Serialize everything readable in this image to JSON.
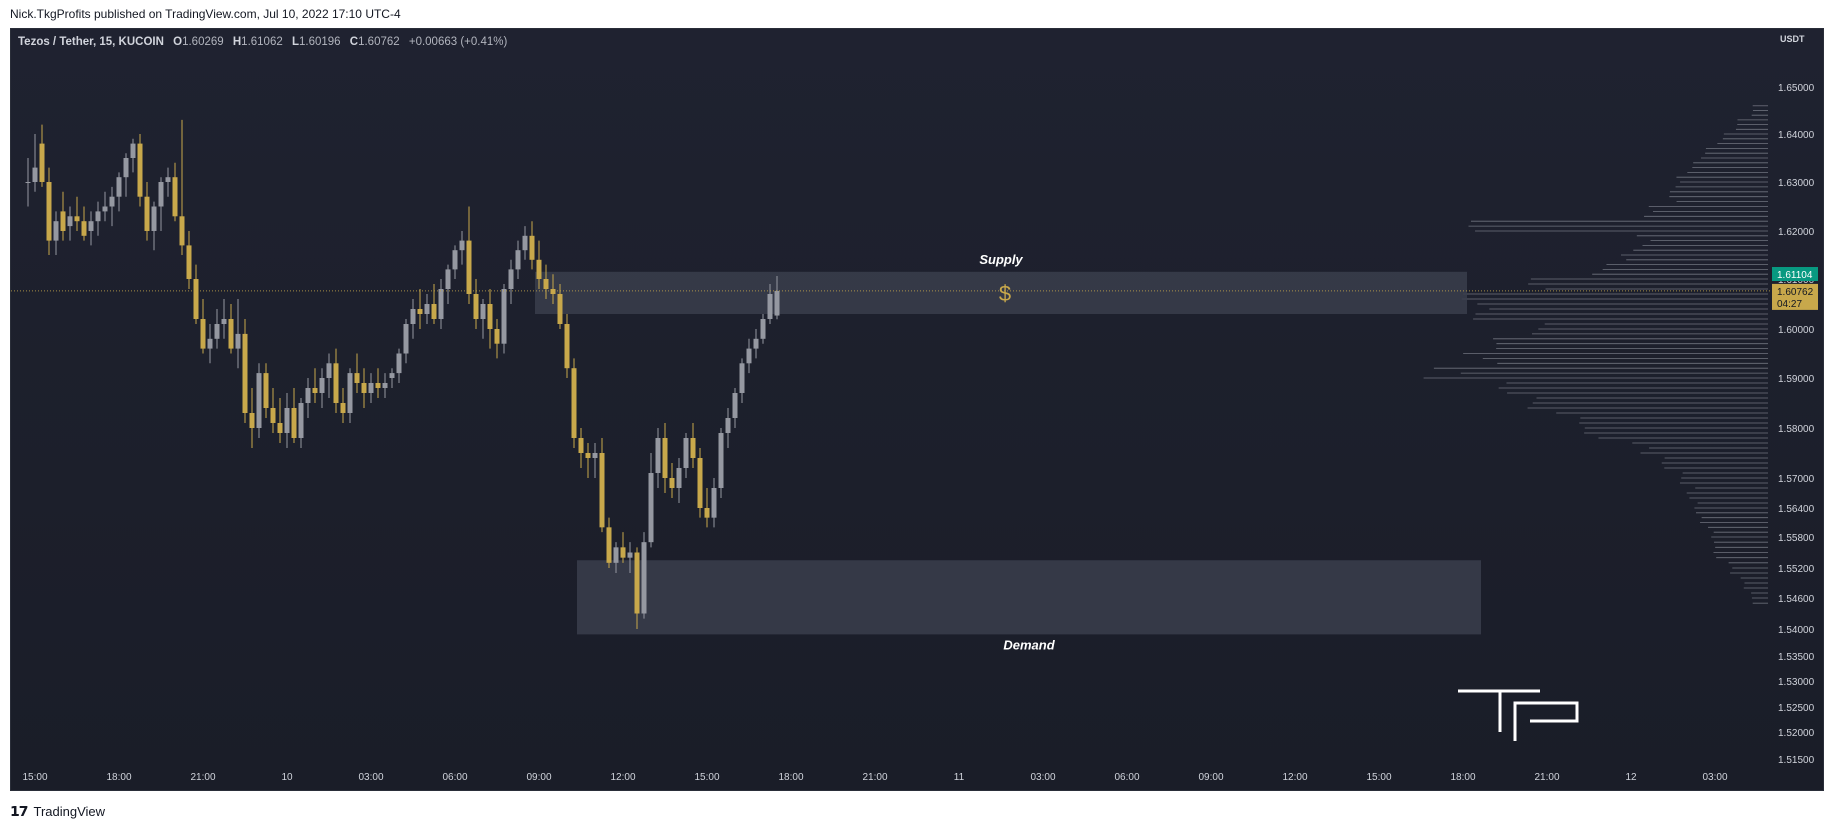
{
  "header": {
    "published": "Nick.TkgProfits published on TradingView.com, Jul 10, 2022 17:10 UTC-4"
  },
  "legend": {
    "symbol": "Tezos / Tether, 15, KUCOIN",
    "o_label": "O",
    "o_value": "1.60269",
    "h_label": "H",
    "h_value": "1.61062",
    "l_label": "L",
    "l_value": "1.60196",
    "c_label": "C",
    "c_value": "1.60762",
    "change": "+0.00663 (+0.41%)"
  },
  "footer": {
    "brand": "TradingView"
  },
  "colors": {
    "bull": "#c8a84b",
    "bear": "#9598a1",
    "zone": "#3a3e4c",
    "last_price_bg": "#089981",
    "close_bg": "#c8a84b",
    "dollar": "#c8a84b"
  },
  "chart_data": {
    "type": "candlestick",
    "symbol": "Tezos / Tether",
    "interval": "15",
    "exchange": "KUCOIN",
    "currency_label": "USDT",
    "ylim": [
      1.514,
      1.66
    ],
    "yticks": [
      "1.65000",
      "1.64000",
      "1.63000",
      "1.62000",
      "1.61000",
      "1.60000",
      "1.59000",
      "1.58000",
      "1.57000",
      "1.56400",
      "1.55800",
      "1.55200",
      "1.54600",
      "1.54000",
      "1.53500",
      "1.53000",
      "1.52500",
      "1.52000",
      "1.51500"
    ],
    "ytick_values": [
      1.65,
      1.64,
      1.63,
      1.62,
      1.61,
      1.6,
      1.59,
      1.58,
      1.57,
      1.564,
      1.558,
      1.552,
      1.546,
      1.54,
      1.535,
      1.53,
      1.525,
      1.52,
      1.515
    ],
    "xticks": [
      "15:00",
      "18:00",
      "21:00",
      "10",
      "03:00",
      "06:00",
      "09:00",
      "12:00",
      "15:00",
      "18:00",
      "21:00",
      "11",
      "03:00",
      "06:00",
      "09:00",
      "12:00",
      "15:00",
      "18:00",
      "21:00",
      "12",
      "03:00"
    ],
    "xtick_hours": [
      0,
      3,
      6,
      9,
      12,
      15,
      18,
      21,
      24,
      27,
      30,
      33,
      36,
      39,
      42,
      45,
      48,
      51,
      54,
      57,
      60
    ],
    "candle_start_hour": -0.25,
    "candles": [
      [
        1.63,
        1.635,
        1.625,
        1.63
      ],
      [
        1.63,
        1.64,
        1.628,
        1.633
      ],
      [
        1.638,
        1.642,
        1.629,
        1.63
      ],
      [
        1.63,
        1.633,
        1.615,
        1.618
      ],
      [
        1.618,
        1.624,
        1.615,
        1.622
      ],
      [
        1.624,
        1.628,
        1.618,
        1.62
      ],
      [
        1.621,
        1.625,
        1.618,
        1.623
      ],
      [
        1.623,
        1.627,
        1.62,
        1.622
      ],
      [
        1.622,
        1.625,
        1.618,
        1.619
      ],
      [
        1.62,
        1.624,
        1.617,
        1.622
      ],
      [
        1.622,
        1.626,
        1.619,
        1.624
      ],
      [
        1.624,
        1.628,
        1.622,
        1.625
      ],
      [
        1.625,
        1.629,
        1.621,
        1.627
      ],
      [
        1.627,
        1.632,
        1.624,
        1.631
      ],
      [
        1.631,
        1.636,
        1.627,
        1.635
      ],
      [
        1.635,
        1.639,
        1.632,
        1.638
      ],
      [
        1.638,
        1.64,
        1.625,
        1.627
      ],
      [
        1.627,
        1.63,
        1.618,
        1.62
      ],
      [
        1.62,
        1.626,
        1.616,
        1.625
      ],
      [
        1.625,
        1.631,
        1.62,
        1.63
      ],
      [
        1.63,
        1.633,
        1.627,
        1.631
      ],
      [
        1.631,
        1.634,
        1.622,
        1.623
      ],
      [
        1.623,
        1.643,
        1.615,
        1.617
      ],
      [
        1.617,
        1.62,
        1.608,
        1.61
      ],
      [
        1.61,
        1.613,
        1.601,
        1.602
      ],
      [
        1.602,
        1.606,
        1.595,
        1.596
      ],
      [
        1.596,
        1.601,
        1.593,
        1.598
      ],
      [
        1.598,
        1.604,
        1.596,
        1.601
      ],
      [
        1.601,
        1.606,
        1.598,
        1.602
      ],
      [
        1.602,
        1.605,
        1.595,
        1.596
      ],
      [
        1.596,
        1.606,
        1.592,
        1.599
      ],
      [
        1.599,
        1.602,
        1.581,
        1.583
      ],
      [
        1.583,
        1.588,
        1.576,
        1.58
      ],
      [
        1.58,
        1.593,
        1.578,
        1.591
      ],
      [
        1.591,
        1.593,
        1.582,
        1.584
      ],
      [
        1.584,
        1.588,
        1.579,
        1.581
      ],
      [
        1.581,
        1.586,
        1.577,
        1.579
      ],
      [
        1.579,
        1.587,
        1.576,
        1.584
      ],
      [
        1.584,
        1.588,
        1.577,
        1.578
      ],
      [
        1.578,
        1.586,
        1.576,
        1.585
      ],
      [
        1.585,
        1.59,
        1.582,
        1.588
      ],
      [
        1.588,
        1.592,
        1.585,
        1.587
      ],
      [
        1.587,
        1.592,
        1.584,
        1.59
      ],
      [
        1.59,
        1.595,
        1.586,
        1.593
      ],
      [
        1.593,
        1.596,
        1.583,
        1.585
      ],
      [
        1.585,
        1.588,
        1.581,
        1.583
      ],
      [
        1.583,
        1.592,
        1.581,
        1.591
      ],
      [
        1.591,
        1.595,
        1.587,
        1.589
      ],
      [
        1.589,
        1.592,
        1.584,
        1.587
      ],
      [
        1.587,
        1.591,
        1.585,
        1.589
      ],
      [
        1.589,
        1.592,
        1.586,
        1.588
      ],
      [
        1.588,
        1.591,
        1.586,
        1.589
      ],
      [
        1.59,
        1.592,
        1.588,
        1.591
      ],
      [
        1.591,
        1.596,
        1.589,
        1.595
      ],
      [
        1.595,
        1.602,
        1.593,
        1.601
      ],
      [
        1.601,
        1.606,
        1.598,
        1.604
      ],
      [
        1.604,
        1.608,
        1.6,
        1.603
      ],
      [
        1.603,
        1.607,
        1.601,
        1.605
      ],
      [
        1.605,
        1.609,
        1.601,
        1.602
      ],
      [
        1.602,
        1.61,
        1.6,
        1.608
      ],
      [
        1.608,
        1.613,
        1.605,
        1.612
      ],
      [
        1.612,
        1.617,
        1.61,
        1.616
      ],
      [
        1.616,
        1.62,
        1.613,
        1.618
      ],
      [
        1.618,
        1.625,
        1.605,
        1.607
      ],
      [
        1.607,
        1.61,
        1.6,
        1.602
      ],
      [
        1.602,
        1.606,
        1.598,
        1.605
      ],
      [
        1.605,
        1.608,
        1.596,
        1.6
      ],
      [
        1.6,
        1.602,
        1.594,
        1.597
      ],
      [
        1.597,
        1.609,
        1.595,
        1.608
      ],
      [
        1.608,
        1.614,
        1.605,
        1.612
      ],
      [
        1.612,
        1.618,
        1.61,
        1.616
      ],
      [
        1.616,
        1.621,
        1.614,
        1.619
      ],
      [
        1.619,
        1.622,
        1.612,
        1.614
      ],
      [
        1.614,
        1.618,
        1.608,
        1.61
      ],
      [
        1.61,
        1.613,
        1.606,
        1.608
      ],
      [
        1.608,
        1.611,
        1.605,
        1.607
      ],
      [
        1.607,
        1.609,
        1.6,
        1.601
      ],
      [
        1.601,
        1.603,
        1.59,
        1.592
      ],
      [
        1.592,
        1.594,
        1.576,
        1.578
      ],
      [
        1.578,
        1.58,
        1.572,
        1.575
      ],
      [
        1.575,
        1.577,
        1.57,
        1.574
      ],
      [
        1.574,
        1.577,
        1.57,
        1.575
      ],
      [
        1.575,
        1.578,
        1.559,
        1.56
      ],
      [
        1.56,
        1.562,
        1.552,
        1.553
      ],
      [
        1.553,
        1.557,
        1.551,
        1.556
      ],
      [
        1.556,
        1.559,
        1.553,
        1.554
      ],
      [
        1.554,
        1.557,
        1.551,
        1.555
      ],
      [
        1.555,
        1.556,
        1.54,
        1.543
      ],
      [
        1.543,
        1.559,
        1.542,
        1.557
      ],
      [
        1.557,
        1.575,
        1.556,
        1.571
      ],
      [
        1.571,
        1.58,
        1.568,
        1.578
      ],
      [
        1.578,
        1.581,
        1.567,
        1.57
      ],
      [
        1.57,
        1.573,
        1.566,
        1.568
      ],
      [
        1.568,
        1.574,
        1.565,
        1.572
      ],
      [
        1.572,
        1.579,
        1.57,
        1.578
      ],
      [
        1.578,
        1.581,
        1.572,
        1.574
      ],
      [
        1.574,
        1.576,
        1.562,
        1.564
      ],
      [
        1.564,
        1.568,
        1.56,
        1.562
      ],
      [
        1.562,
        1.57,
        1.56,
        1.568
      ],
      [
        1.568,
        1.58,
        1.566,
        1.579
      ],
      [
        1.579,
        1.584,
        1.576,
        1.582
      ],
      [
        1.582,
        1.588,
        1.58,
        1.587
      ],
      [
        1.587,
        1.594,
        1.585,
        1.593
      ],
      [
        1.593,
        1.598,
        1.591,
        1.596
      ],
      [
        1.596,
        1.6,
        1.594,
        1.598
      ],
      [
        1.598,
        1.603,
        1.597,
        1.602
      ],
      [
        1.602,
        1.609,
        1.601,
        1.607
      ],
      [
        1.60269,
        1.61062,
        1.60196,
        1.60762
      ]
    ],
    "last_price_label": "1.61104",
    "close_label": "1.60762",
    "countdown_label": "04:27",
    "zones": [
      {
        "label": "Supply",
        "top": 1.6115,
        "bottom": 1.603,
        "start_hour": 18.0,
        "end_hour": 51.0,
        "marker": "$"
      },
      {
        "label": "Demand",
        "top": 1.5535,
        "bottom": 1.539,
        "start_hour": 19.5,
        "end_hour": 51.5
      }
    ],
    "volume_profile": {
      "levels": [
        1.545,
        1.548,
        1.551,
        1.554,
        1.557,
        1.56,
        1.563,
        1.566,
        1.569,
        1.572,
        1.575,
        1.578,
        1.581,
        1.584,
        1.587,
        1.59,
        1.593,
        1.596,
        1.599,
        1.602,
        1.605,
        1.608,
        1.611,
        1.614,
        1.617,
        1.62,
        1.623,
        1.626,
        1.629,
        1.632,
        1.635,
        1.638,
        1.641,
        1.644
      ],
      "widths": [
        0.05,
        0.08,
        0.12,
        0.16,
        0.18,
        0.2,
        0.22,
        0.24,
        0.28,
        0.32,
        0.4,
        0.55,
        0.62,
        0.7,
        0.85,
        1.0,
        0.92,
        0.8,
        0.72,
        0.88,
        0.95,
        0.7,
        0.55,
        0.45,
        0.4,
        0.9,
        0.38,
        0.3,
        0.28,
        0.25,
        0.2,
        0.15,
        0.1,
        0.05
      ]
    }
  }
}
